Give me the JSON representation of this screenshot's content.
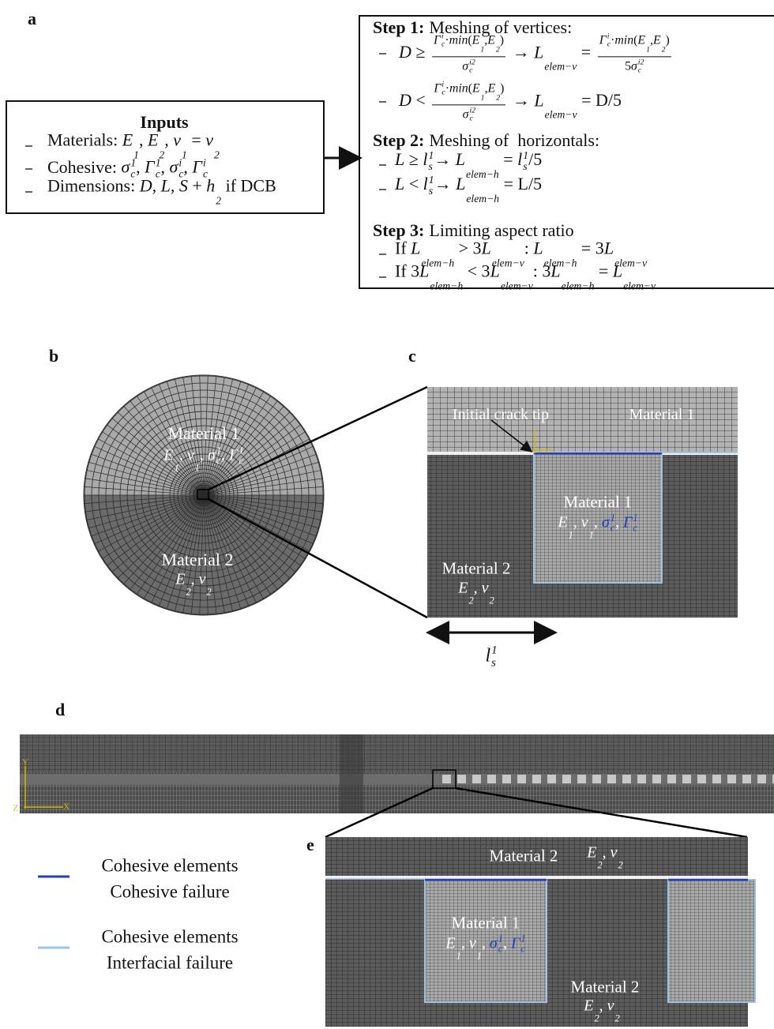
{
  "panel_labels": [
    "a",
    "b",
    "c",
    "d",
    "e"
  ],
  "inputs": {
    "title": "Inputs",
    "items": [
      [
        "Materials: ",
        {
          "b": "E",
          "sub": "1"
        },
        ", ",
        {
          "b": "E",
          "sub": "2"
        },
        ", ",
        {
          "b": "ν",
          "sub": "1"
        },
        " = ",
        {
          "b": "ν",
          "sub": "2"
        }
      ],
      [
        "Cohesive: ",
        {
          "b": "σ",
          "sub": "c",
          "sup": "1"
        },
        ", ",
        {
          "b": "Γ",
          "sub": "c",
          "sup": "1"
        },
        ", ",
        {
          "b": "σ",
          "sub": "c",
          "sup": "i"
        },
        ", ",
        {
          "b": "Γ",
          "sub": "c",
          "sup": "i"
        }
      ],
      [
        "Dimensions: ",
        {
          "b": "D, L, S"
        },
        " + ",
        {
          "b": "h",
          "sub": "2"
        },
        " if DCB"
      ]
    ]
  },
  "steps": [
    {
      "heading": "Step 1:",
      "text": "Meshing of vertices:",
      "items": [
        [
          {
            "b": "D"
          },
          " ≥ ",
          {
            "num": [
              {
                "b": "Γ",
                "sub": "c",
                "sup": "i"
              },
              "·",
              {
                "b": "min"
              },
              "(",
              {
                "b": "E",
                "sub": "1"
              },
              ",",
              {
                "b": "E",
                "sub": "2"
              },
              ")"
            ],
            "den": [
              {
                "b": "σ",
                "sub": "c",
                "sup": "i2"
              }
            ]
          },
          " → ",
          {
            "b": "L",
            "sub": "elem−v"
          },
          " = ",
          {
            "num": [
              {
                "b": "Γ",
                "sub": "c",
                "sup": "i"
              },
              "·",
              {
                "b": "min"
              },
              "(",
              {
                "b": "E",
                "sub": "1"
              },
              ",",
              {
                "b": "E",
                "sub": "2"
              },
              ")"
            ],
            "den": [
              "5",
              {
                "b": "σ",
                "sub": "c",
                "sup": "i2"
              }
            ]
          }
        ],
        [
          {
            "b": "D"
          },
          " < ",
          {
            "num": [
              {
                "b": "Γ",
                "sub": "c",
                "sup": "i"
              },
              "·",
              {
                "b": "min"
              },
              "(",
              {
                "b": "E",
                "sub": "1"
              },
              ",",
              {
                "b": "E",
                "sub": "2"
              },
              ")"
            ],
            "den": [
              {
                "b": "σ",
                "sub": "c",
                "sup": "i2"
              }
            ]
          },
          " → ",
          {
            "b": "L",
            "sub": "elem−v"
          },
          " = D/5"
        ]
      ]
    },
    {
      "heading": "Step 2:",
      "text": "Meshing of  horizontals:",
      "items": [
        [
          {
            "b": "L"
          },
          " ≥ ",
          {
            "b": "l",
            "sub": "s",
            "sup": "1"
          },
          "→ ",
          {
            "b": "L",
            "sub": "elem−h"
          },
          " = ",
          {
            "b": "l",
            "sub": "s",
            "sup": "1"
          },
          "/5"
        ],
        [
          {
            "b": "L"
          },
          " < ",
          {
            "b": "l",
            "sub": "s",
            "sup": "1"
          },
          "→ ",
          {
            "b": "L",
            "sub": "elem−h"
          },
          " = L/5"
        ]
      ]
    },
    {
      "heading": "Step 3:",
      "text": "Limiting aspect ratio",
      "items": [
        [
          "If ",
          {
            "b": "L",
            "sub": "elem−h"
          },
          " > 3",
          {
            "b": "L",
            "sub": "elem−v"
          },
          ": ",
          {
            "b": "L",
            "sub": "elem−h"
          },
          " = 3",
          {
            "b": "L",
            "sub": "elem−v"
          }
        ],
        [
          "If 3",
          {
            "b": "L",
            "sub": "elem−h"
          },
          " < 3",
          {
            "b": "L",
            "sub": "elem−v"
          },
          ": 3",
          {
            "b": "L",
            "sub": "elem−h"
          },
          " = ",
          {
            "b": "L",
            "sub": "elem−v"
          }
        ]
      ]
    }
  ],
  "panel_b": {
    "upper": [
      "Material 1",
      [
        {
          "b": "E",
          "sub": "1"
        },
        ", ",
        {
          "b": "ν",
          "sub": "1"
        },
        ", ",
        {
          "b": "σ",
          "sub": "c",
          "sup": "1"
        },
        ", ",
        {
          "b": "Γ",
          "sub": "c",
          "sup": "1"
        }
      ]
    ],
    "lower": [
      "Material 2",
      [
        {
          "b": "E",
          "sub": "2"
        },
        ", ",
        {
          "b": "ν",
          "sub": "2"
        }
      ]
    ]
  },
  "panel_c": {
    "crack_tip": "Initial crack tip",
    "top_material": "Material 1",
    "center": [
      "Material 1",
      [
        {
          "b": "E",
          "sub": "1"
        },
        ", ",
        {
          "b": "ν",
          "sub": "1"
        },
        ", ",
        {
          "b": "σ",
          "sub": "c",
          "sup": "1",
          "color": "#1f3fbf"
        },
        ", ",
        {
          "b": "Γ",
          "sub": "c",
          "sup": "1",
          "color": "#1f3fbf"
        }
      ]
    ],
    "lower": [
      "Material 2",
      [
        {
          "b": "E",
          "sub": "2"
        },
        ", ",
        {
          "b": "ν",
          "sub": "2"
        }
      ]
    ],
    "dimension": [
      {
        "b": "l",
        "sub": "s",
        "sup": "1"
      }
    ]
  },
  "panel_d": {
    "axes": [
      "Y",
      "Z",
      "X"
    ]
  },
  "panel_e": {
    "top": [
      "Material 2",
      [
        {
          "b": "E",
          "sub": "2"
        },
        ", ",
        {
          "b": "ν",
          "sub": "2"
        }
      ]
    ],
    "center": [
      "Material 1",
      [
        {
          "b": "E",
          "sub": "1"
        },
        ", ",
        {
          "b": "ν",
          "sub": "1"
        },
        ", ",
        {
          "b": "σ",
          "sub": "c",
          "sup": "1",
          "color": "#1f3fbf"
        },
        ", ",
        {
          "b": "Γ",
          "sub": "c",
          "sup": "1",
          "color": "#1f3fbf"
        }
      ]
    ],
    "lower": [
      "Material 2",
      [
        {
          "b": "E",
          "sub": "2"
        },
        ", ",
        {
          "b": "ν",
          "sub": "2"
        }
      ]
    ]
  },
  "legend": [
    {
      "color": "#1f3fbf",
      "lines": [
        "Cohesive elements",
        "Cohesive failure"
      ]
    },
    {
      "color": "#9dc3e6",
      "lines": [
        "Cohesive elements",
        "Interfacial failure"
      ]
    }
  ]
}
